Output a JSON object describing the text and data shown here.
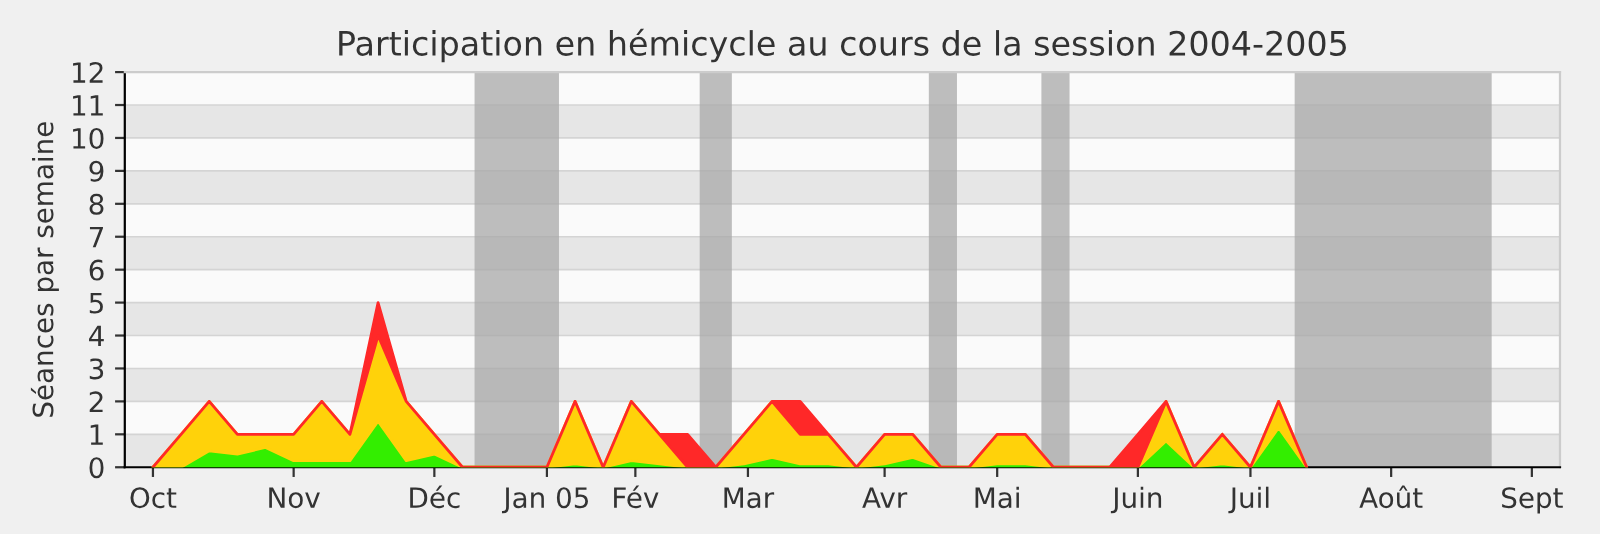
{
  "chart_data": {
    "type": "area",
    "stacked": true,
    "title": "Participation en hémicycle au cours de la session 2004-2005",
    "ylabel": "Séances par semaine",
    "x": [
      "2004-10-04",
      "2004-10-11",
      "2004-10-18",
      "2004-10-25",
      "2004-11-01",
      "2004-11-08",
      "2004-11-15",
      "2004-11-22",
      "2004-11-29",
      "2004-12-06",
      "2004-12-13",
      "2004-12-20",
      "2004-12-27",
      "2005-01-03",
      "2005-01-10",
      "2005-01-17",
      "2005-01-24",
      "2005-01-31",
      "2005-02-07",
      "2005-02-14",
      "2005-02-21",
      "2005-02-28",
      "2005-03-07",
      "2005-03-14",
      "2005-03-21",
      "2005-03-28",
      "2005-04-04",
      "2005-04-11",
      "2005-04-18",
      "2005-04-25",
      "2005-05-02",
      "2005-05-09",
      "2005-05-16",
      "2005-05-23",
      "2005-05-30",
      "2005-06-06",
      "2005-06-13",
      "2005-06-20",
      "2005-06-27",
      "2005-07-04",
      "2005-07-11",
      "2005-07-18"
    ],
    "series": [
      {
        "color": "#33ee00",
        "values": [
          0,
          0,
          0.5,
          0.4,
          0.6,
          0.2,
          0.2,
          0.2,
          1.4,
          0.2,
          0.4,
          0,
          0,
          0,
          0,
          0.1,
          0,
          0.2,
          0.1,
          0,
          0,
          0.1,
          0.3,
          0.1,
          0.1,
          0,
          0.1,
          0.3,
          0,
          0,
          0.1,
          0.1,
          0,
          0,
          0,
          0,
          0.8,
          0,
          0.1,
          0,
          1.2,
          0
        ]
      },
      {
        "color": "#ffd20a",
        "values": [
          0,
          1,
          1.5,
          0.6,
          0.4,
          0.8,
          1.8,
          0.8,
          2.6,
          1.8,
          0.6,
          0,
          0,
          0,
          0,
          1.9,
          0,
          1.8,
          0.9,
          0,
          0,
          0.9,
          1.7,
          0.9,
          0.9,
          0,
          0.9,
          0.7,
          0,
          0,
          0.9,
          0.9,
          0,
          0,
          0,
          0,
          1.2,
          0,
          0.9,
          0,
          0.8,
          0
        ]
      },
      {
        "color": "#ff2828",
        "values": [
          0,
          0,
          0,
          0,
          0,
          0,
          0,
          0,
          1,
          0,
          0,
          0,
          0,
          0,
          0,
          0,
          0,
          0,
          0,
          1,
          0,
          0,
          0,
          1,
          0,
          0,
          0,
          0,
          0,
          0,
          0,
          0,
          0,
          0,
          0,
          1,
          0,
          0,
          0,
          0,
          0,
          0
        ]
      }
    ],
    "xlim": [
      "2004-09-27",
      "2005-09-19"
    ],
    "xticks": [
      {
        "value": "2004-10-04",
        "label": "Oct"
      },
      {
        "value": "2004-11-08",
        "label": "Nov"
      },
      {
        "value": "2004-12-13",
        "label": "Déc"
      },
      {
        "value": "2005-01-10",
        "label": "Jan 05"
      },
      {
        "value": "2005-02-01",
        "label": "Fév"
      },
      {
        "value": "2005-03-01",
        "label": "Mar"
      },
      {
        "value": "2005-04-04",
        "label": "Avr"
      },
      {
        "value": "2005-05-02",
        "label": "Mai"
      },
      {
        "value": "2005-06-06",
        "label": "Juin"
      },
      {
        "value": "2005-07-04",
        "label": "Juil"
      },
      {
        "value": "2005-08-08",
        "label": "Août"
      },
      {
        "value": "2005-09-12",
        "label": "Sept"
      }
    ],
    "ylim": [
      0,
      12
    ],
    "yticks": [
      0,
      1,
      2,
      3,
      4,
      5,
      6,
      7,
      8,
      9,
      10,
      11,
      12
    ],
    "bands": [
      {
        "axis": "x",
        "from": "2004-12-23",
        "to": "2005-01-13",
        "color": "#a8a8a8"
      },
      {
        "axis": "x",
        "from": "2005-02-17",
        "to": "2005-02-25",
        "color": "#a8a8a8"
      },
      {
        "axis": "x",
        "from": "2005-04-15",
        "to": "2005-04-22",
        "color": "#a8a8a8"
      },
      {
        "axis": "x",
        "from": "2005-05-13",
        "to": "2005-05-20",
        "color": "#a8a8a8"
      },
      {
        "axis": "x",
        "from": "2005-07-15",
        "to": "2005-09-02",
        "color": "#a8a8a8"
      }
    ],
    "grid": "y"
  }
}
